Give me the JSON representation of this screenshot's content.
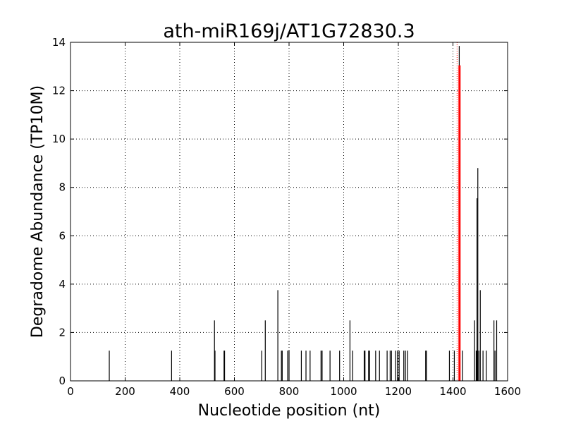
{
  "chart_data": {
    "type": "bar",
    "title": "ath-miR169j/AT1G72830.3",
    "xlabel": "Nucleotide position (nt)",
    "ylabel": "Degradome Abundance (TP10M)",
    "xlim": [
      0,
      1600
    ],
    "ylim": [
      0,
      14
    ],
    "xticks": [
      0,
      200,
      400,
      600,
      800,
      1000,
      1200,
      1400,
      1600
    ],
    "yticks": [
      0,
      2,
      4,
      6,
      8,
      10,
      12,
      14
    ],
    "grid": true,
    "colors": {
      "bars": "#000000",
      "highlight": "#ff0000",
      "grid": "#000000",
      "axes": "#000000"
    },
    "series": [
      {
        "x": [
          142,
          370,
          527,
          529,
          562,
          564,
          700,
          713,
          759,
          772,
          775,
          795,
          800,
          845,
          862,
          877,
          917,
          921,
          950,
          985,
          1023,
          1033,
          1075,
          1078,
          1091,
          1095,
          1117,
          1131,
          1159,
          1170,
          1175,
          1190,
          1197,
          1203,
          1220,
          1226,
          1234,
          1300,
          1303,
          1387,
          1405,
          1423,
          1435,
          1479,
          1485,
          1488,
          1489,
          1491,
          1495,
          1500,
          1510,
          1522,
          1550,
          1554,
          1560
        ],
        "values": [
          1.25,
          1.25,
          2.5,
          1.25,
          1.25,
          1.25,
          1.25,
          2.5,
          3.75,
          1.25,
          1.25,
          1.25,
          1.25,
          1.25,
          1.25,
          1.25,
          1.25,
          1.25,
          1.25,
          1.25,
          2.5,
          1.25,
          1.25,
          1.25,
          1.25,
          1.25,
          1.25,
          1.25,
          1.25,
          1.25,
          1.25,
          1.25,
          1.25,
          1.25,
          1.25,
          1.25,
          1.25,
          1.25,
          1.25,
          1.25,
          1.25,
          13.85,
          1.25,
          2.5,
          1.25,
          7.55,
          1.25,
          8.8,
          1.25,
          3.75,
          1.25,
          1.25,
          2.5,
          1.25,
          2.5
        ]
      }
    ],
    "highlight": {
      "x": 1424,
      "value": 13.05
    },
    "reference_line": {
      "x": 1415
    }
  }
}
